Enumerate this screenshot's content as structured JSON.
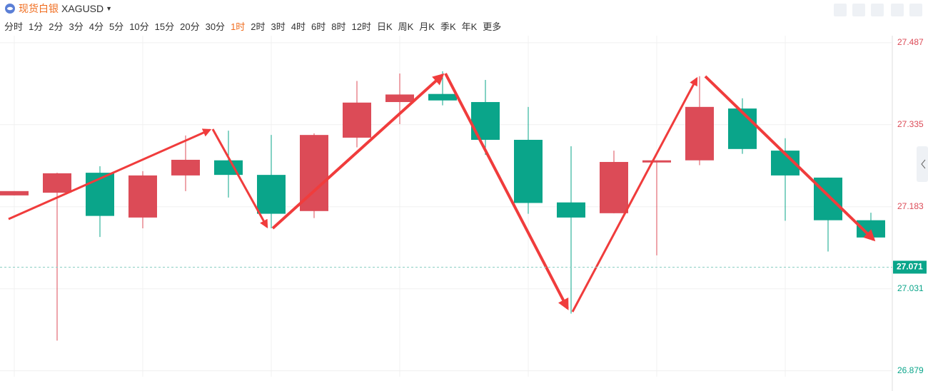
{
  "header": {
    "name": "现货白银",
    "symbol": "XAGUSD"
  },
  "timeframes": [
    "分时",
    "1分",
    "2分",
    "3分",
    "4分",
    "5分",
    "10分",
    "15分",
    "20分",
    "30分",
    "1时",
    "2时",
    "3时",
    "4时",
    "6时",
    "8时",
    "12时",
    "日K",
    "周K",
    "月K",
    "季K",
    "年K",
    "更多"
  ],
  "active_timeframe": 10,
  "chart_data": {
    "type": "candlestick",
    "open": [
      27.204,
      27.209,
      27.246,
      27.163,
      27.241,
      27.269,
      27.242,
      27.175,
      27.311,
      27.377,
      27.392,
      27.377,
      27.307,
      27.191,
      27.171,
      27.265,
      27.269,
      27.365,
      27.287,
      27.237,
      27.158
    ],
    "high": [
      27.212,
      27.246,
      27.258,
      27.249,
      27.315,
      27.324,
      27.316,
      27.319,
      27.416,
      27.43,
      27.434,
      27.418,
      27.368,
      27.295,
      27.287,
      27.269,
      27.425,
      27.384,
      27.31,
      27.237,
      27.172
    ],
    "low": [
      27.204,
      26.935,
      27.127,
      27.143,
      27.212,
      27.2,
      27.143,
      27.162,
      27.293,
      27.336,
      27.371,
      27.279,
      27.17,
      26.985,
      27.171,
      27.093,
      27.26,
      27.281,
      27.157,
      27.1,
      27.126
    ],
    "close": [
      27.212,
      27.245,
      27.166,
      27.241,
      27.27,
      27.242,
      27.17,
      27.316,
      27.376,
      27.391,
      27.38,
      27.307,
      27.19,
      27.163,
      27.266,
      27.269,
      27.368,
      27.29,
      27.241,
      27.158,
      27.126
    ],
    "up_color": "#dc4b57",
    "down_color": "#0aa58a",
    "ylim": [
      26.868,
      27.5
    ],
    "yticks": [
      26.879,
      27.031,
      27.183,
      27.335,
      27.487
    ],
    "current_price": 27.071,
    "grid": true
  }
}
